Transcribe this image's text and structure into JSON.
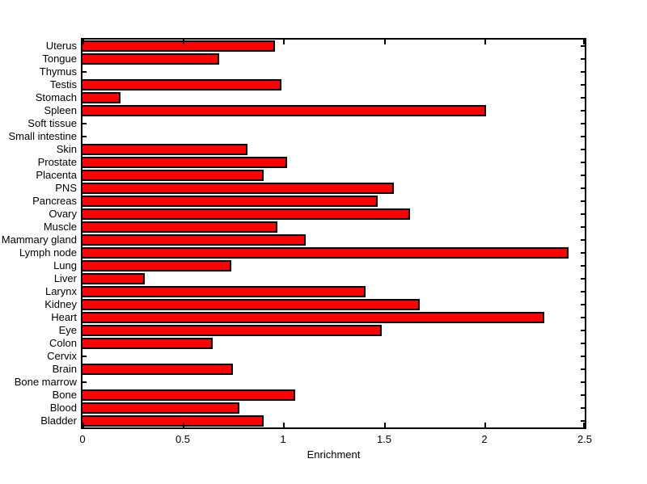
{
  "chart_data": {
    "type": "bar",
    "orientation": "horizontal",
    "title": "",
    "xlabel": "Enrichment",
    "ylabel": "",
    "xlim": [
      0,
      2.5
    ],
    "xticks": [
      0,
      0.5,
      1,
      1.5,
      2,
      2.5
    ],
    "xtick_labels": [
      "0",
      "0.5",
      "1",
      "1.5",
      "2",
      "2.5"
    ],
    "grid": false,
    "legend": null,
    "bar_color": "#ff0000",
    "bar_edge_color": "#000000",
    "axis_color": "#000000",
    "background_color": "#ffffff",
    "categories": [
      "Uterus",
      "Tongue",
      "Thymus",
      "Testis",
      "Stomach",
      "Spleen",
      "Soft tissue",
      "Small intestine",
      "Skin",
      "Prostate",
      "Placenta",
      "PNS",
      "Pancreas",
      "Ovary",
      "Muscle",
      "Mammary gland",
      "Lymph node",
      "Lung",
      "Liver",
      "Larynx",
      "Kidney",
      "Heart",
      "Eye",
      "Colon",
      "Cervix",
      "Brain",
      "Bone marrow",
      "Bone",
      "Blood",
      "Bladder"
    ],
    "values": [
      0.96,
      0.68,
      0,
      0.99,
      0.19,
      2.01,
      0,
      0,
      0.82,
      1.02,
      0.9,
      1.55,
      1.47,
      1.63,
      0.97,
      1.11,
      2.42,
      0.74,
      0.31,
      1.41,
      1.68,
      2.3,
      1.49,
      0.65,
      0,
      0.75,
      0,
      1.06,
      0.78,
      0.9
    ]
  }
}
